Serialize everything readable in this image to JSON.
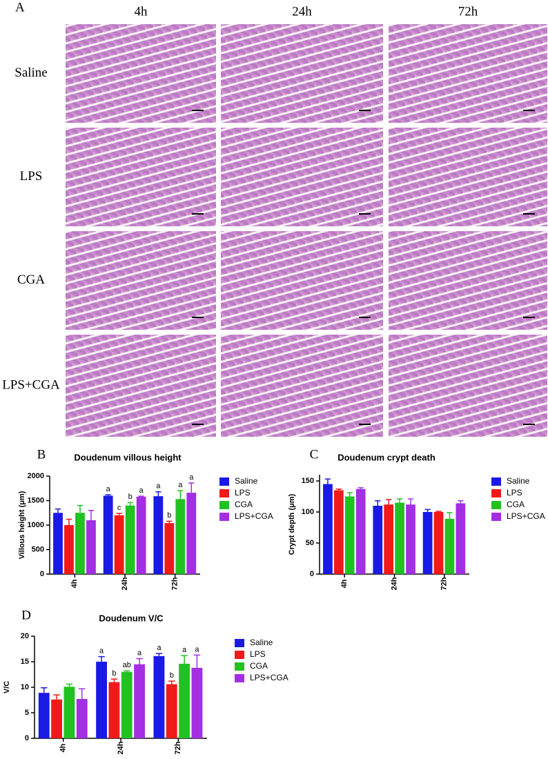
{
  "panel_a": {
    "panel": "A",
    "columns": [
      "4h",
      "24h",
      "72h"
    ],
    "rows": [
      "Saline",
      "LPS",
      "CGA",
      "LPS+CGA"
    ]
  },
  "chart_data": [
    {
      "type": "bar",
      "panel": "B",
      "title": "Doudenum villous height",
      "ylabel": "Villous height (μm)",
      "categories": [
        "4h",
        "24h",
        "72h"
      ],
      "ylim": [
        0,
        2000
      ],
      "yticks": [
        0,
        500,
        1000,
        1500,
        2000
      ],
      "series": [
        {
          "name": "Saline",
          "color": "#1a1ae6",
          "values": [
            1250,
            1600,
            1590
          ],
          "errors": [
            80,
            20,
            90
          ],
          "annotations": [
            null,
            "a",
            "a"
          ]
        },
        {
          "name": "LPS",
          "color": "#f01a1a",
          "values": [
            1000,
            1200,
            1040
          ],
          "errors": [
            120,
            40,
            40
          ],
          "annotations": [
            null,
            "c",
            "b"
          ]
        },
        {
          "name": "CGA",
          "color": "#22c122",
          "values": [
            1250,
            1400,
            1530
          ],
          "errors": [
            150,
            60,
            170
          ],
          "annotations": [
            null,
            "b",
            "a"
          ]
        },
        {
          "name": "LPS+CGA",
          "color": "#a32fe3",
          "values": [
            1100,
            1580,
            1660
          ],
          "errors": [
            200,
            10,
            200
          ],
          "annotations": [
            null,
            "a",
            "a"
          ]
        }
      ]
    },
    {
      "type": "bar",
      "panel": "C",
      "title": "Doudenum crypt death",
      "ylabel": "Crypt depth (μm)",
      "categories": [
        "4h",
        "24h",
        "72h"
      ],
      "ylim": [
        0,
        160
      ],
      "yticks": [
        0,
        50,
        100,
        150
      ],
      "series": [
        {
          "name": "Saline",
          "color": "#1a1ae6",
          "values": [
            145,
            110,
            100
          ],
          "errors": [
            8,
            8,
            4
          ]
        },
        {
          "name": "LPS",
          "color": "#f01a1a",
          "values": [
            135,
            112,
            100
          ],
          "errors": [
            2,
            8,
            1
          ]
        },
        {
          "name": "CGA",
          "color": "#22c122",
          "values": [
            125,
            115,
            89
          ],
          "errors": [
            6,
            6,
            10
          ]
        },
        {
          "name": "LPS+CGA",
          "color": "#a32fe3",
          "values": [
            137,
            112,
            114
          ],
          "errors": [
            2,
            9,
            4
          ]
        }
      ]
    },
    {
      "type": "bar",
      "panel": "D",
      "title": "Doudenum V/C",
      "ylabel": "V/C",
      "categories": [
        "4h",
        "24h",
        "72h"
      ],
      "ylim": [
        0,
        20
      ],
      "yticks": [
        0,
        5,
        10,
        15,
        20
      ],
      "series": [
        {
          "name": "Saline",
          "color": "#1a1ae6",
          "values": [
            8.9,
            15,
            16.1
          ],
          "errors": [
            1,
            1,
            0.5
          ],
          "annotations": [
            null,
            "a",
            "a"
          ]
        },
        {
          "name": "LPS",
          "color": "#f01a1a",
          "values": [
            7.6,
            11,
            10.6
          ],
          "errors": [
            0.9,
            0.6,
            0.6
          ],
          "annotations": [
            null,
            "b",
            "b"
          ]
        },
        {
          "name": "CGA",
          "color": "#22c122",
          "values": [
            10.1,
            13,
            14.6
          ],
          "errors": [
            0.5,
            0.2,
            1.6
          ],
          "annotations": [
            null,
            "ab",
            "a"
          ]
        },
        {
          "name": "LPS+CGA",
          "color": "#a32fe3",
          "values": [
            7.7,
            14.5,
            13.8
          ],
          "errors": [
            2,
            1.1,
            2.5
          ],
          "annotations": [
            null,
            "a",
            "a"
          ]
        }
      ]
    }
  ]
}
